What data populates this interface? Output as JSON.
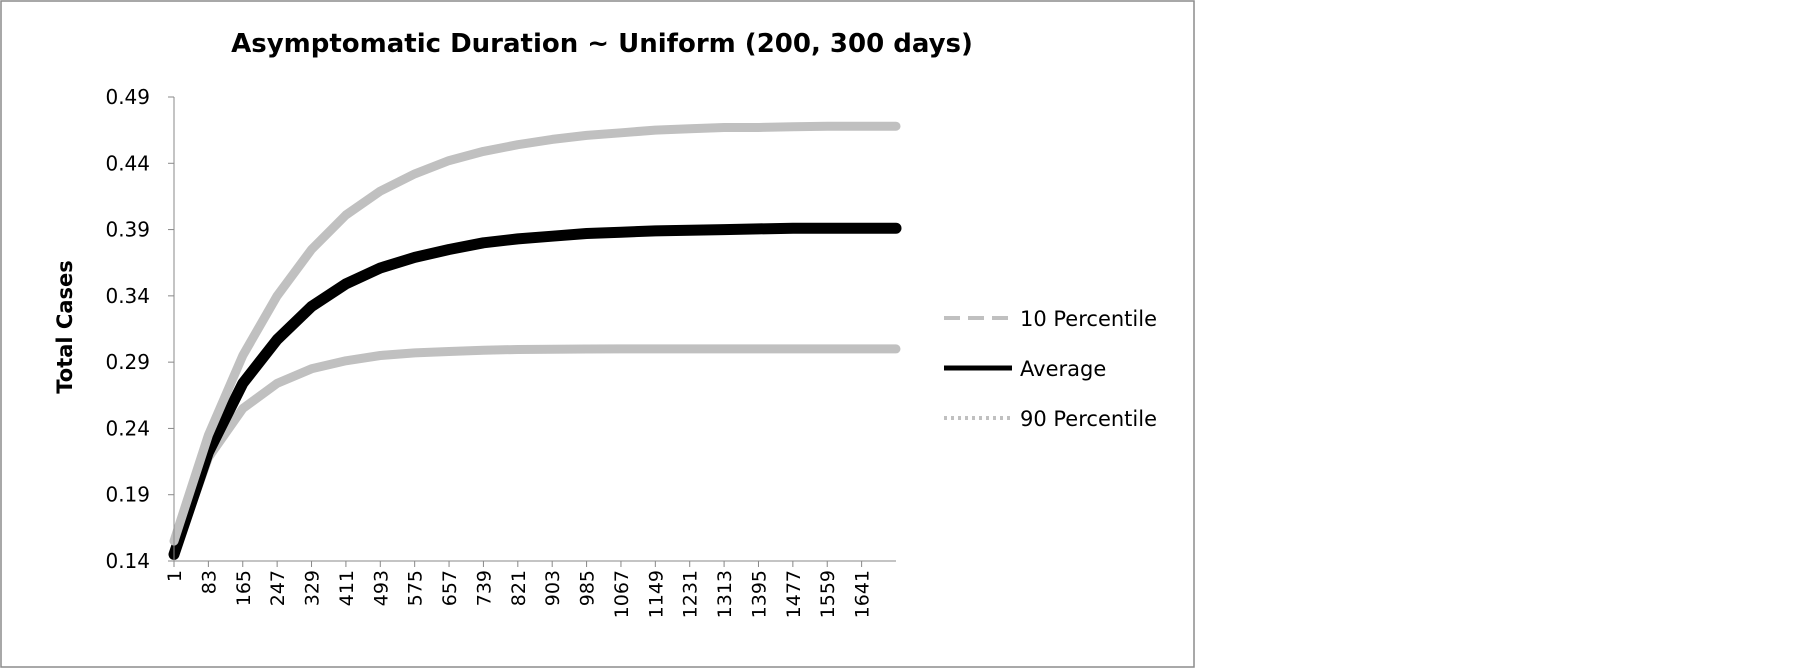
{
  "chart_data": {
    "type": "line",
    "title": "Asymptomatic Duration ~ Uniform (200, 300 days)",
    "ylabel": "Total Cases",
    "xlabel": "",
    "ylim": [
      0.14,
      0.49
    ],
    "xlim": [
      1,
      1723
    ],
    "yticks": [
      "0.49",
      "0.44",
      "0.39",
      "0.34",
      "0.29",
      "0.24",
      "0.19",
      "0.14"
    ],
    "xticks": [
      "1",
      "83",
      "165",
      "247",
      "329",
      "411",
      "493",
      "575",
      "657",
      "739",
      "821",
      "903",
      "985",
      "1067",
      "1149",
      "1231",
      "1313",
      "1395",
      "1477",
      "1559",
      "1641"
    ],
    "legend_position": "right",
    "grid": false,
    "series": [
      {
        "name": "10 Percentile",
        "style": "dashed",
        "color": "#c0c0c0",
        "x": [
          1,
          83,
          165,
          247,
          329,
          411,
          493,
          575,
          657,
          739,
          821,
          903,
          985,
          1067,
          1149,
          1231,
          1313,
          1395,
          1477,
          1559,
          1641,
          1723
        ],
        "values": [
          0.145,
          0.218,
          0.255,
          0.274,
          0.285,
          0.291,
          0.295,
          0.297,
          0.298,
          0.299,
          0.2995,
          0.2998,
          0.2999,
          0.3,
          0.3,
          0.3,
          0.3,
          0.3,
          0.3,
          0.3,
          0.3,
          0.3
        ]
      },
      {
        "name": "Average",
        "style": "solid",
        "color": "#000000",
        "x": [
          1,
          83,
          165,
          247,
          329,
          411,
          493,
          575,
          657,
          739,
          821,
          903,
          985,
          1067,
          1149,
          1231,
          1313,
          1395,
          1477,
          1559,
          1641,
          1723
        ],
        "values": [
          0.145,
          0.222,
          0.274,
          0.307,
          0.332,
          0.349,
          0.361,
          0.369,
          0.375,
          0.38,
          0.383,
          0.385,
          0.387,
          0.388,
          0.389,
          0.3895,
          0.39,
          0.3905,
          0.391,
          0.391,
          0.391,
          0.391
        ]
      },
      {
        "name": "90 Percentile",
        "style": "dotted",
        "color": "#c0c0c0",
        "x": [
          1,
          83,
          165,
          247,
          329,
          411,
          493,
          575,
          657,
          739,
          821,
          903,
          985,
          1067,
          1149,
          1231,
          1313,
          1395,
          1477,
          1559,
          1641,
          1723
        ],
        "values": [
          0.155,
          0.235,
          0.295,
          0.34,
          0.375,
          0.401,
          0.419,
          0.432,
          0.442,
          0.449,
          0.454,
          0.458,
          0.461,
          0.463,
          0.465,
          0.466,
          0.467,
          0.467,
          0.4675,
          0.468,
          0.468,
          0.468
        ]
      }
    ]
  }
}
